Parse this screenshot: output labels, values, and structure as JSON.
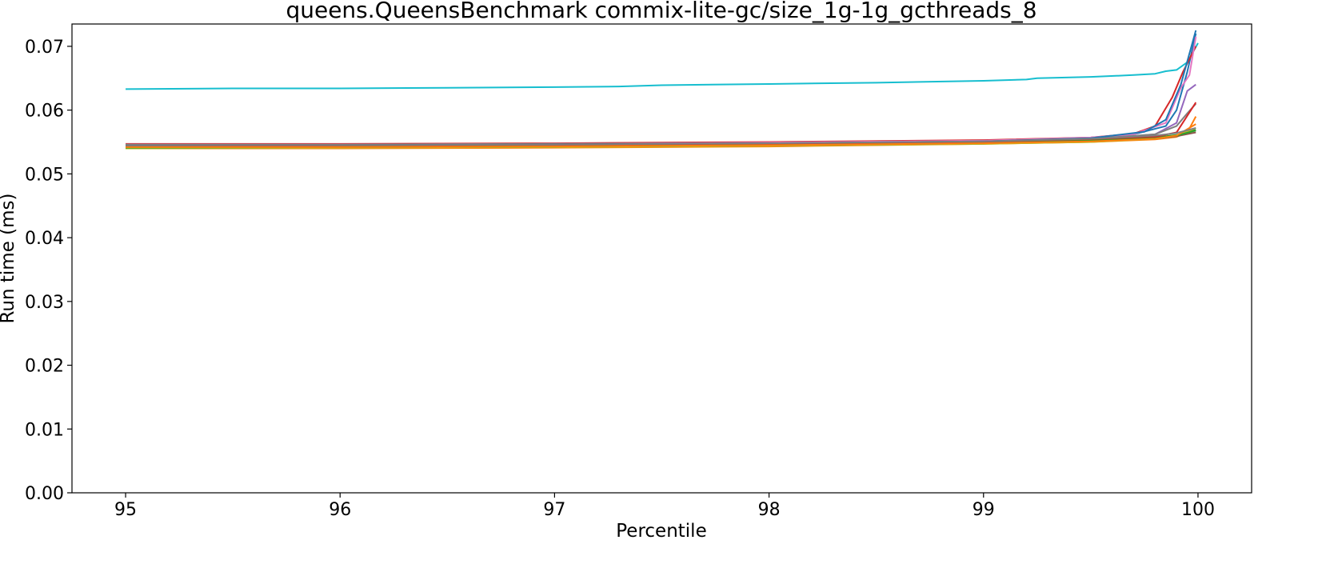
{
  "chart_data": {
    "type": "line",
    "title": "queens.QueensBenchmark commix-lite-gc/size_1g-1g_gcthreads_8",
    "xlabel": "Percentile",
    "ylabel": "Run time (ms)",
    "xlim": [
      94.75,
      100.25
    ],
    "ylim": [
      0.0,
      0.0735
    ],
    "x_ticks": [
      95,
      96,
      97,
      98,
      99,
      100
    ],
    "x_tick_labels": [
      "95",
      "96",
      "97",
      "98",
      "99",
      "100"
    ],
    "y_ticks": [
      0.0,
      0.01,
      0.02,
      0.03,
      0.04,
      0.05,
      0.06,
      0.07
    ],
    "y_tick_labels": [
      "0.00",
      "0.01",
      "0.02",
      "0.03",
      "0.04",
      "0.05",
      "0.06",
      "0.07"
    ],
    "grid": false,
    "legend": "none",
    "series": [
      {
        "color": "#17becf",
        "points": [
          [
            95,
            0.0633
          ],
          [
            95.5,
            0.0634
          ],
          [
            96,
            0.0634
          ],
          [
            96.5,
            0.0635
          ],
          [
            97,
            0.0636
          ],
          [
            97.3,
            0.0637
          ],
          [
            97.5,
            0.0639
          ],
          [
            98,
            0.0641
          ],
          [
            98.5,
            0.0643
          ],
          [
            99,
            0.0646
          ],
          [
            99.2,
            0.0648
          ],
          [
            99.25,
            0.065
          ],
          [
            99.5,
            0.0652
          ],
          [
            99.7,
            0.0655
          ],
          [
            99.8,
            0.0657
          ],
          [
            99.85,
            0.0661
          ],
          [
            99.9,
            0.0663
          ],
          [
            99.95,
            0.0675
          ],
          [
            100,
            0.0705
          ]
        ]
      },
      {
        "color": "#1f77b4",
        "points": [
          [
            95,
            0.0545
          ],
          [
            96,
            0.0546
          ],
          [
            97,
            0.0547
          ],
          [
            98,
            0.0549
          ],
          [
            99,
            0.0551
          ],
          [
            99.5,
            0.0555
          ],
          [
            99.7,
            0.0562
          ],
          [
            99.85,
            0.0575
          ],
          [
            99.9,
            0.06
          ],
          [
            99.95,
            0.066
          ],
          [
            99.99,
            0.072
          ]
        ]
      },
      {
        "color": "#ff7f0e",
        "points": [
          [
            95,
            0.054
          ],
          [
            96,
            0.054
          ],
          [
            97,
            0.0541
          ],
          [
            98,
            0.0543
          ],
          [
            99,
            0.0547
          ],
          [
            99.5,
            0.055
          ],
          [
            99.8,
            0.0554
          ],
          [
            99.9,
            0.0558
          ],
          [
            99.95,
            0.0565
          ],
          [
            99.99,
            0.059
          ]
        ]
      },
      {
        "color": "#2ca02c",
        "points": [
          [
            95,
            0.0543
          ],
          [
            96,
            0.0543
          ],
          [
            97,
            0.0544
          ],
          [
            98,
            0.0546
          ],
          [
            99,
            0.0549
          ],
          [
            99.5,
            0.0552
          ],
          [
            99.8,
            0.0557
          ],
          [
            99.9,
            0.0561
          ],
          [
            99.99,
            0.0569
          ]
        ]
      },
      {
        "color": "#d62728",
        "points": [
          [
            95,
            0.0547
          ],
          [
            96,
            0.0547
          ],
          [
            97,
            0.0548
          ],
          [
            98,
            0.055
          ],
          [
            99,
            0.0553
          ],
          [
            99.5,
            0.0557
          ],
          [
            99.7,
            0.0563
          ],
          [
            99.8,
            0.0575
          ],
          [
            99.88,
            0.062
          ],
          [
            99.93,
            0.066
          ],
          [
            99.99,
            0.07
          ]
        ]
      },
      {
        "color": "#9467bd",
        "points": [
          [
            95,
            0.0544
          ],
          [
            96,
            0.0544
          ],
          [
            97,
            0.0545
          ],
          [
            98,
            0.0547
          ],
          [
            99,
            0.055
          ],
          [
            99.5,
            0.0554
          ],
          [
            99.8,
            0.0562
          ],
          [
            99.9,
            0.058
          ],
          [
            99.95,
            0.063
          ],
          [
            99.99,
            0.064
          ]
        ]
      },
      {
        "color": "#8c564b",
        "points": [
          [
            95,
            0.0541
          ],
          [
            96,
            0.0542
          ],
          [
            97,
            0.0543
          ],
          [
            98,
            0.0545
          ],
          [
            99,
            0.0548
          ],
          [
            99.5,
            0.0551
          ],
          [
            99.8,
            0.0555
          ],
          [
            99.9,
            0.0559
          ],
          [
            99.99,
            0.0565
          ]
        ]
      },
      {
        "color": "#e377c2",
        "points": [
          [
            95,
            0.0546
          ],
          [
            96,
            0.0546
          ],
          [
            97,
            0.0547
          ],
          [
            98,
            0.0549
          ],
          [
            99,
            0.0552
          ],
          [
            99.5,
            0.0557
          ],
          [
            99.7,
            0.0562
          ],
          [
            99.85,
            0.058
          ],
          [
            99.92,
            0.0635
          ],
          [
            99.96,
            0.0655
          ],
          [
            99.99,
            0.0715
          ]
        ]
      },
      {
        "color": "#7f7f7f",
        "points": [
          [
            95,
            0.0546
          ],
          [
            96,
            0.0546
          ],
          [
            97,
            0.0547
          ],
          [
            98,
            0.0548
          ],
          [
            99,
            0.0551
          ],
          [
            99.5,
            0.0555
          ],
          [
            99.8,
            0.0562
          ],
          [
            99.9,
            0.0575
          ],
          [
            99.95,
            0.0595
          ],
          [
            99.99,
            0.061
          ]
        ]
      },
      {
        "color": "#bcbd22",
        "points": [
          [
            95,
            0.054
          ],
          [
            96,
            0.0541
          ],
          [
            97,
            0.0542
          ],
          [
            98,
            0.0544
          ],
          [
            99,
            0.0547
          ],
          [
            99.5,
            0.055
          ],
          [
            99.8,
            0.0555
          ],
          [
            99.9,
            0.056
          ],
          [
            99.99,
            0.0572
          ]
        ]
      },
      {
        "color": "#1f77b4",
        "points": [
          [
            95,
            0.0544
          ],
          [
            96,
            0.0545
          ],
          [
            97,
            0.0546
          ],
          [
            98,
            0.0548
          ],
          [
            99,
            0.0551
          ],
          [
            99.5,
            0.0556
          ],
          [
            99.75,
            0.0566
          ],
          [
            99.85,
            0.0585
          ],
          [
            99.92,
            0.064
          ],
          [
            99.99,
            0.0725
          ]
        ]
      },
      {
        "color": "#d62728",
        "points": [
          [
            95,
            0.0542
          ],
          [
            96,
            0.0543
          ],
          [
            97,
            0.0544
          ],
          [
            98,
            0.0546
          ],
          [
            99,
            0.0549
          ],
          [
            99.5,
            0.0553
          ],
          [
            99.8,
            0.0558
          ],
          [
            99.9,
            0.0565
          ],
          [
            99.99,
            0.0612
          ]
        ]
      },
      {
        "color": "#2ca02c",
        "points": [
          [
            95,
            0.0541
          ],
          [
            96,
            0.0542
          ],
          [
            97,
            0.0543
          ],
          [
            98,
            0.0545
          ],
          [
            99,
            0.0548
          ],
          [
            99.5,
            0.0552
          ],
          [
            99.8,
            0.0556
          ],
          [
            99.9,
            0.056
          ],
          [
            99.99,
            0.0568
          ]
        ]
      },
      {
        "color": "#ff7f0e",
        "points": [
          [
            95,
            0.0542
          ],
          [
            96,
            0.0542
          ],
          [
            97,
            0.0543
          ],
          [
            98,
            0.0545
          ],
          [
            99,
            0.0548
          ],
          [
            99.5,
            0.0551
          ],
          [
            99.8,
            0.0555
          ],
          [
            99.9,
            0.056
          ],
          [
            99.99,
            0.0578
          ]
        ]
      },
      {
        "color": "#7f7f7f",
        "points": [
          [
            95,
            0.0545
          ],
          [
            96,
            0.0545
          ],
          [
            97,
            0.0546
          ],
          [
            98,
            0.0548
          ],
          [
            99,
            0.0551
          ],
          [
            99.5,
            0.0555
          ],
          [
            99.8,
            0.056
          ],
          [
            99.9,
            0.0564
          ],
          [
            99.99,
            0.0572
          ]
        ]
      }
    ]
  }
}
